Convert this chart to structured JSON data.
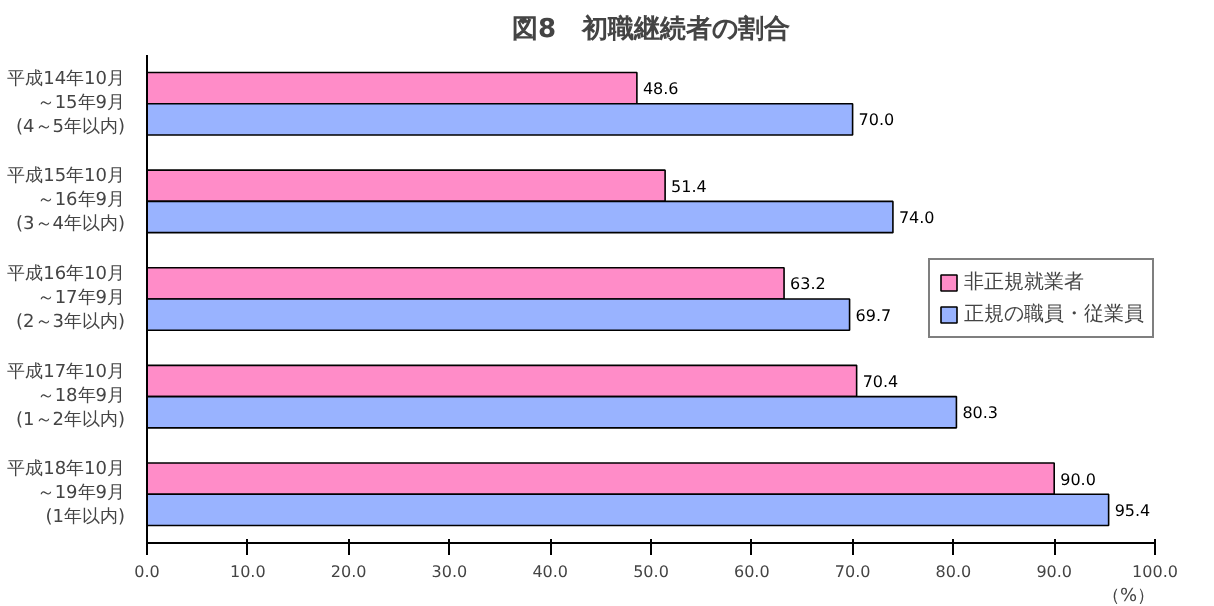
{
  "chart_data": {
    "type": "bar",
    "orientation": "horizontal",
    "title": "図8　初職継続者の割合",
    "xlabel": "（%）",
    "categories": [
      "平成14年10月～15年9月(4～5年以内)",
      "平成15年10月～16年9月(3～4年以内)",
      "平成16年10月～17年9月(2～3年以内)",
      "平成17年10月～18年9月(1～2年以内)",
      "平成18年10月～19年9月(1年以内)"
    ],
    "series": [
      {
        "name": "非正規就業者",
        "color": "#ff8cc8",
        "values": [
          48.6,
          51.4,
          63.2,
          70.4,
          90.0
        ],
        "value_labels": [
          "48.6",
          "51.4",
          "63.2",
          "70.4",
          "90.0"
        ]
      },
      {
        "name": "正規の職員・従業員",
        "color": "#99b3ff",
        "values": [
          70.0,
          74.0,
          69.7,
          80.3,
          95.4
        ],
        "value_labels": [
          "70.0",
          "74.0",
          "69.7",
          "80.3",
          "95.4"
        ]
      }
    ],
    "xlim": [
      0,
      100
    ],
    "xticks": [
      {
        "value": 0,
        "label": "0.0"
      },
      {
        "value": 10,
        "label": "10.0"
      },
      {
        "value": 20,
        "label": "20.0"
      },
      {
        "value": 30,
        "label": "30.0"
      },
      {
        "value": 40,
        "label": "40.0"
      },
      {
        "value": 50,
        "label": "50.0"
      },
      {
        "value": 60,
        "label": "60.0"
      },
      {
        "value": 70,
        "label": "70.0"
      },
      {
        "value": 80,
        "label": "80.0"
      },
      {
        "value": 90,
        "label": "90.0"
      },
      {
        "value": 100,
        "label": "100.0"
      }
    ],
    "legend": "right",
    "grid": false
  }
}
